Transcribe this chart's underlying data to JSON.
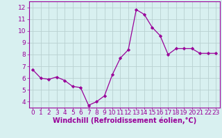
{
  "x": [
    0,
    1,
    2,
    3,
    4,
    5,
    6,
    7,
    8,
    9,
    10,
    11,
    12,
    13,
    14,
    15,
    16,
    17,
    18,
    19,
    20,
    21,
    22,
    23
  ],
  "y": [
    6.7,
    6.0,
    5.9,
    6.1,
    5.8,
    5.3,
    5.2,
    3.7,
    4.0,
    4.5,
    6.3,
    7.7,
    8.4,
    11.8,
    11.4,
    10.3,
    9.6,
    8.0,
    8.5,
    8.5,
    8.5,
    8.1,
    8.1,
    8.1
  ],
  "line_color": "#990099",
  "marker": "D",
  "marker_size": 2.2,
  "bg_color": "#d8f0f0",
  "grid_color": "#b8d0d0",
  "xlabel": "Windchill (Refroidissement éolien,°C)",
  "ylabel": "",
  "ylim": [
    3.5,
    12.5
  ],
  "xlim": [
    -0.5,
    23.5
  ],
  "yticks": [
    4,
    5,
    6,
    7,
    8,
    9,
    10,
    11,
    12
  ],
  "xticks": [
    0,
    1,
    2,
    3,
    4,
    5,
    6,
    7,
    8,
    9,
    10,
    11,
    12,
    13,
    14,
    15,
    16,
    17,
    18,
    19,
    20,
    21,
    22,
    23
  ],
  "tick_color": "#990099",
  "label_color": "#990099",
  "spine_color": "#990099",
  "font_size": 6.5,
  "xlabel_size": 7.0
}
